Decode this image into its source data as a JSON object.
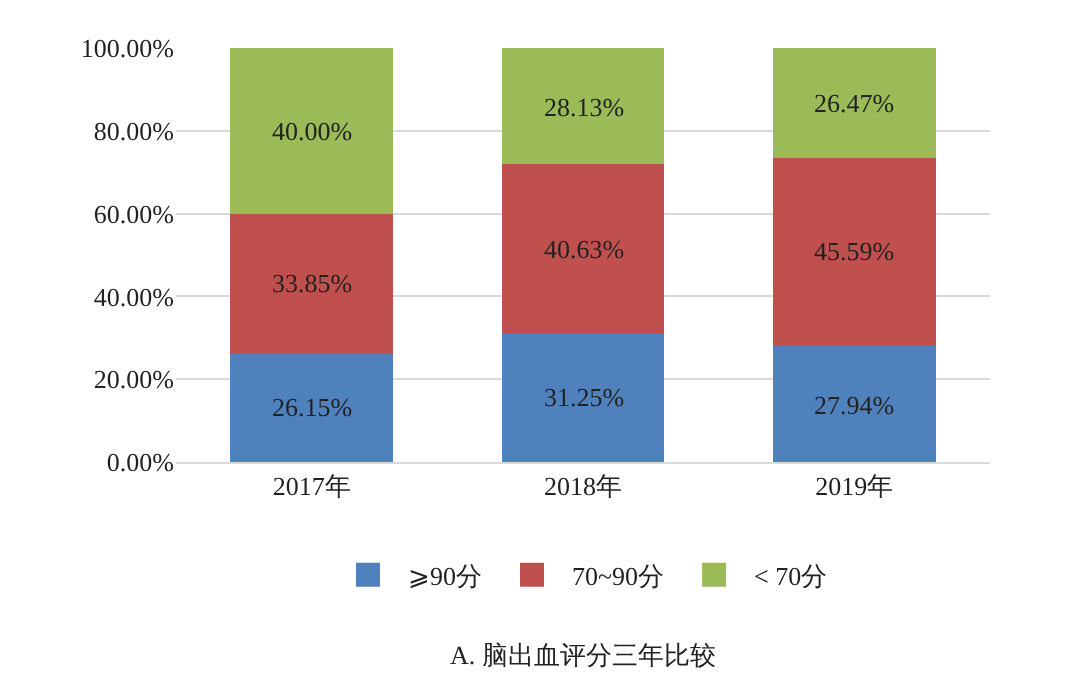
{
  "chart_data": {
    "type": "bar",
    "stacked": true,
    "categories": [
      "2017年",
      "2018年",
      "2019年"
    ],
    "series": [
      {
        "name": "⩾90分",
        "color": "#4f81bd",
        "values": [
          26.15,
          31.25,
          27.94
        ],
        "value_labels": [
          "26.15%",
          "31.25%",
          "27.94%"
        ]
      },
      {
        "name": "70~90分",
        "color": "#c0504d",
        "values": [
          33.85,
          40.63,
          45.59
        ],
        "value_labels": [
          "33.85%",
          "40.63%",
          "45.59%"
        ]
      },
      {
        "name": "< 70分",
        "color": "#9bbb59",
        "values": [
          40.0,
          28.13,
          26.47
        ],
        "value_labels": [
          "40.00%",
          "28.13%",
          "26.47%"
        ]
      }
    ],
    "ylim": [
      0,
      100
    ],
    "yticks": [
      {
        "value": 0,
        "label": "0.00%"
      },
      {
        "value": 20,
        "label": "20.00%"
      },
      {
        "value": 40,
        "label": "40.00%"
      },
      {
        "value": 60,
        "label": "60.00%"
      },
      {
        "value": 80,
        "label": "80.00%"
      },
      {
        "value": 100,
        "label": "100.00%"
      }
    ],
    "grid": "y",
    "legend": "bottom",
    "annotations": [
      "A. 脑出血评分三年比较"
    ]
  }
}
